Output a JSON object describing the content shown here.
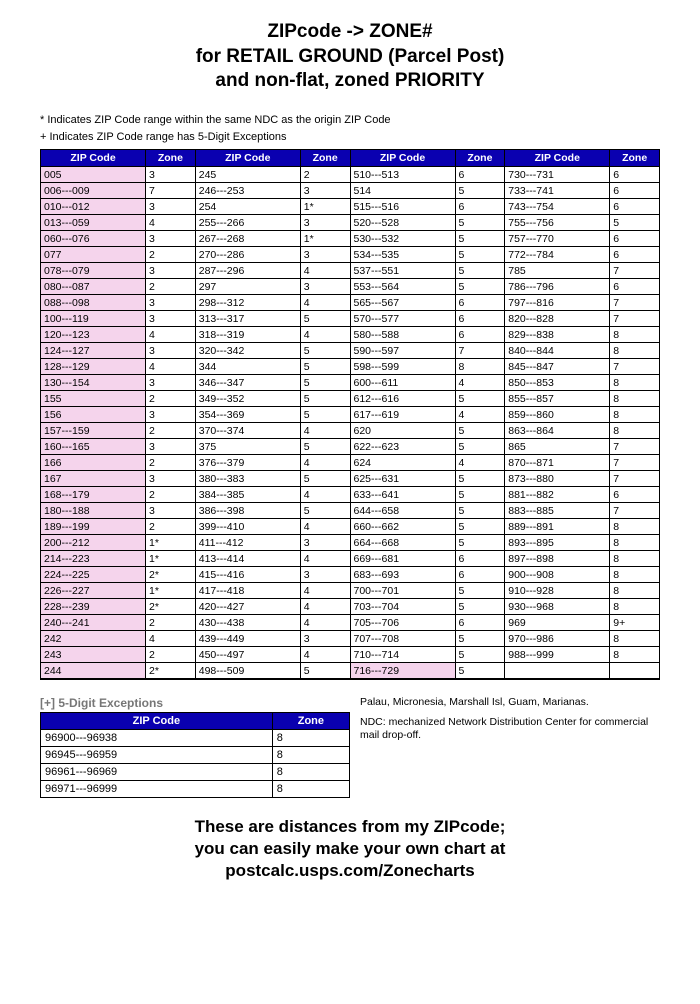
{
  "title_lines": [
    "ZIPcode -> ZONE#",
    "for RETAIL GROUND (Parcel Post)",
    "and non-flat, zoned PRIORITY"
  ],
  "note_star": "* Indicates ZIP Code range within the same NDC as the origin ZIP Code",
  "note_plus": "+ Indicates ZIP Code range has 5-Digit Exceptions",
  "headers": {
    "zip": "ZIP Code",
    "zone": "Zone"
  },
  "colors": {
    "header_bg": "#0a00b0",
    "header_fg": "#ffffff",
    "pink_bg": "#f5d4ec",
    "border": "#000000"
  },
  "columns": [
    {
      "pink": true,
      "rows": [
        {
          "zip": "005",
          "zone": "3"
        },
        {
          "zip": "006---009",
          "zone": "7"
        },
        {
          "zip": "010---012",
          "zone": "3"
        },
        {
          "zip": "013---059",
          "zone": "4"
        },
        {
          "zip": "060---076",
          "zone": "3"
        },
        {
          "zip": "077",
          "zone": "2"
        },
        {
          "zip": "078---079",
          "zone": "3"
        },
        {
          "zip": "080---087",
          "zone": "2"
        },
        {
          "zip": "088---098",
          "zone": "3"
        },
        {
          "zip": "100---119",
          "zone": "3"
        },
        {
          "zip": "120---123",
          "zone": "4"
        },
        {
          "zip": "124---127",
          "zone": "3"
        },
        {
          "zip": "128---129",
          "zone": "4"
        },
        {
          "zip": "130---154",
          "zone": "3"
        },
        {
          "zip": "155",
          "zone": "2"
        },
        {
          "zip": "156",
          "zone": "3"
        },
        {
          "zip": "157---159",
          "zone": "2"
        },
        {
          "zip": "160---165",
          "zone": "3"
        },
        {
          "zip": "166",
          "zone": "2"
        },
        {
          "zip": "167",
          "zone": "3"
        },
        {
          "zip": "168---179",
          "zone": "2"
        },
        {
          "zip": "180---188",
          "zone": "3"
        },
        {
          "zip": "189---199",
          "zone": "2"
        },
        {
          "zip": "200---212",
          "zone": "1*"
        },
        {
          "zip": "214---223",
          "zone": "1*"
        },
        {
          "zip": "224---225",
          "zone": "2*"
        },
        {
          "zip": "226---227",
          "zone": "1*"
        },
        {
          "zip": "228---239",
          "zone": "2*"
        },
        {
          "zip": "240---241",
          "zone": "2"
        },
        {
          "zip": "242",
          "zone": "4"
        },
        {
          "zip": "243",
          "zone": "2"
        },
        {
          "zip": "244",
          "zone": "2*"
        }
      ]
    },
    {
      "pink": false,
      "rows": [
        {
          "zip": "245",
          "zone": "2"
        },
        {
          "zip": "246---253",
          "zone": "3"
        },
        {
          "zip": "254",
          "zone": "1*"
        },
        {
          "zip": "255---266",
          "zone": "3"
        },
        {
          "zip": "267---268",
          "zone": "1*"
        },
        {
          "zip": "270---286",
          "zone": "3"
        },
        {
          "zip": "287---296",
          "zone": "4"
        },
        {
          "zip": "297",
          "zone": "3"
        },
        {
          "zip": "298---312",
          "zone": "4"
        },
        {
          "zip": "313---317",
          "zone": "5"
        },
        {
          "zip": "318---319",
          "zone": "4"
        },
        {
          "zip": "320---342",
          "zone": "5"
        },
        {
          "zip": "344",
          "zone": "5"
        },
        {
          "zip": "346---347",
          "zone": "5"
        },
        {
          "zip": "349---352",
          "zone": "5"
        },
        {
          "zip": "354---369",
          "zone": "5"
        },
        {
          "zip": "370---374",
          "zone": "4"
        },
        {
          "zip": "375",
          "zone": "5"
        },
        {
          "zip": "376---379",
          "zone": "4"
        },
        {
          "zip": "380---383",
          "zone": "5"
        },
        {
          "zip": "384---385",
          "zone": "4"
        },
        {
          "zip": "386---398",
          "zone": "5"
        },
        {
          "zip": "399---410",
          "zone": "4"
        },
        {
          "zip": "411---412",
          "zone": "3"
        },
        {
          "zip": "413---414",
          "zone": "4"
        },
        {
          "zip": "415---416",
          "zone": "3"
        },
        {
          "zip": "417---418",
          "zone": "4"
        },
        {
          "zip": "420---427",
          "zone": "4"
        },
        {
          "zip": "430---438",
          "zone": "4"
        },
        {
          "zip": "439---449",
          "zone": "3"
        },
        {
          "zip": "450---497",
          "zone": "4"
        },
        {
          "zip": "498---509",
          "zone": "5"
        }
      ]
    },
    {
      "pink": false,
      "rows": [
        {
          "zip": "510---513",
          "zone": "6"
        },
        {
          "zip": "514",
          "zone": "5"
        },
        {
          "zip": "515---516",
          "zone": "6"
        },
        {
          "zip": "520---528",
          "zone": "5"
        },
        {
          "zip": "530---532",
          "zone": "5"
        },
        {
          "zip": "534---535",
          "zone": "5"
        },
        {
          "zip": "537---551",
          "zone": "5"
        },
        {
          "zip": "553---564",
          "zone": "5"
        },
        {
          "zip": "565---567",
          "zone": "6"
        },
        {
          "zip": "570---577",
          "zone": "6"
        },
        {
          "zip": "580---588",
          "zone": "6"
        },
        {
          "zip": "590---597",
          "zone": "7"
        },
        {
          "zip": "598---599",
          "zone": "8"
        },
        {
          "zip": "600---611",
          "zone": "4"
        },
        {
          "zip": "612---616",
          "zone": "5"
        },
        {
          "zip": "617---619",
          "zone": "4"
        },
        {
          "zip": "620",
          "zone": "5"
        },
        {
          "zip": "622---623",
          "zone": "5"
        },
        {
          "zip": "624",
          "zone": "4"
        },
        {
          "zip": "625---631",
          "zone": "5"
        },
        {
          "zip": "633---641",
          "zone": "5"
        },
        {
          "zip": "644---658",
          "zone": "5"
        },
        {
          "zip": "660---662",
          "zone": "5"
        },
        {
          "zip": "664---668",
          "zone": "5"
        },
        {
          "zip": "669---681",
          "zone": "6"
        },
        {
          "zip": "683---693",
          "zone": "6"
        },
        {
          "zip": "700---701",
          "zone": "5"
        },
        {
          "zip": "703---704",
          "zone": "5"
        },
        {
          "zip": "705---706",
          "zone": "6"
        },
        {
          "zip": "707---708",
          "zone": "5"
        },
        {
          "zip": "710---714",
          "zone": "5"
        },
        {
          "zip": "716---729",
          "zone": "5",
          "p": true
        }
      ]
    },
    {
      "pink": false,
      "rows": [
        {
          "zip": "730---731",
          "zone": "6"
        },
        {
          "zip": "733---741",
          "zone": "6"
        },
        {
          "zip": "743---754",
          "zone": "6"
        },
        {
          "zip": "755---756",
          "zone": "5"
        },
        {
          "zip": "757---770",
          "zone": "6"
        },
        {
          "zip": "772---784",
          "zone": "6"
        },
        {
          "zip": "785",
          "zone": "7"
        },
        {
          "zip": "786---796",
          "zone": "6"
        },
        {
          "zip": "797---816",
          "zone": "7"
        },
        {
          "zip": "820---828",
          "zone": "7"
        },
        {
          "zip": "829---838",
          "zone": "8"
        },
        {
          "zip": "840---844",
          "zone": "8"
        },
        {
          "zip": "845---847",
          "zone": "7"
        },
        {
          "zip": "850---853",
          "zone": "8"
        },
        {
          "zip": "855---857",
          "zone": "8"
        },
        {
          "zip": "859---860",
          "zone": "8"
        },
        {
          "zip": "863---864",
          "zone": "8"
        },
        {
          "zip": "865",
          "zone": "7"
        },
        {
          "zip": "870---871",
          "zone": "7"
        },
        {
          "zip": "873---880",
          "zone": "7"
        },
        {
          "zip": "881---882",
          "zone": "6"
        },
        {
          "zip": "883---885",
          "zone": "7"
        },
        {
          "zip": "889---891",
          "zone": "8"
        },
        {
          "zip": "893---895",
          "zone": "8"
        },
        {
          "zip": "897---898",
          "zone": "8"
        },
        {
          "zip": "900---908",
          "zone": "8"
        },
        {
          "zip": "910---928",
          "zone": "8"
        },
        {
          "zip": "930---968",
          "zone": "8"
        },
        {
          "zip": "969",
          "zone": "9+"
        },
        {
          "zip": "970---986",
          "zone": "8"
        },
        {
          "zip": "988---999",
          "zone": "8"
        }
      ]
    }
  ],
  "exceptions_header": "[+] 5-Digit Exceptions",
  "exceptions_side_top": "Palau, Micronesia, Marshall Isl, Guam, Marianas.",
  "exceptions_side_text": "NDC: mechanized Network Distribution Center for commercial mail drop-off.",
  "exceptions_rows": [
    {
      "zip": "96900---96938",
      "zone": "8"
    },
    {
      "zip": "96945---96959",
      "zone": "8"
    },
    {
      "zip": "96961---96969",
      "zone": "8"
    },
    {
      "zip": "96971---96999",
      "zone": "8"
    }
  ],
  "footer_lines": [
    "These are distances from my ZIPcode;",
    "you can easily make your own chart at",
    "postcalc.usps.com/Zonecharts"
  ]
}
